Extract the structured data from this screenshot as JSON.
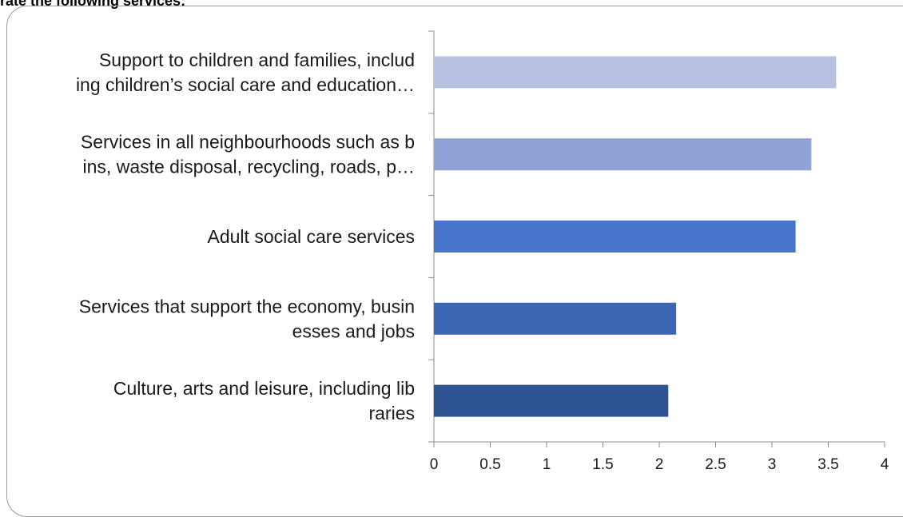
{
  "caption": "rate the following services:",
  "chart_data": {
    "type": "bar",
    "orientation": "horizontal",
    "title": "",
    "xlabel": "",
    "ylabel": "",
    "xlim": [
      0,
      4
    ],
    "x_ticks": [
      "0",
      "0.5",
      "1",
      "1.5",
      "2",
      "2.5",
      "3",
      "3.5",
      "4"
    ],
    "grid": false,
    "categories": [
      {
        "lines": [
          "Support to children and families, includ",
          "ing children’s social care and education…"
        ],
        "value": 3.57,
        "color": "#b8c1e2"
      },
      {
        "lines": [
          "Services in all neighbourhoods such as b",
          "ins, waste disposal, recycling, roads, p…"
        ],
        "value": 3.35,
        "color": "#8fa3d6"
      },
      {
        "lines": [
          "Adult social care services"
        ],
        "value": 3.21,
        "color": "#4775cb"
      },
      {
        "lines": [
          "Services that support the economy, busin",
          "esses and jobs"
        ],
        "value": 2.15,
        "color": "#3d67b4"
      },
      {
        "lines": [
          "Culture, arts and leisure, including lib",
          "raries"
        ],
        "value": 2.08,
        "color": "#2f5494"
      }
    ]
  }
}
